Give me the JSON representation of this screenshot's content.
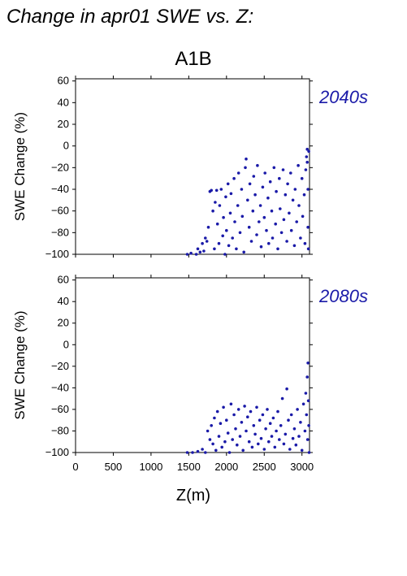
{
  "chart_data": {
    "type": "scatter",
    "title": "Change in apr01 SWE vs. Z:",
    "subtitle": "A1B",
    "xlabel": "Z(m)",
    "ylabel": "SWE Change (%)",
    "xlim": [
      0,
      3100
    ],
    "ylim": [
      -100,
      62
    ],
    "xticks": [
      0,
      500,
      1000,
      1500,
      2000,
      2500,
      3000
    ],
    "yticks": [
      -100,
      -80,
      -60,
      -40,
      -20,
      0,
      20,
      40,
      60
    ],
    "grid": false,
    "point_color": "#1a1aa8",
    "panels": [
      {
        "label": "2040s",
        "points": [
          [
            1480,
            -100
          ],
          [
            1530,
            -99
          ],
          [
            1600,
            -100
          ],
          [
            1620,
            -95
          ],
          [
            1650,
            -98
          ],
          [
            1680,
            -90
          ],
          [
            1700,
            -97
          ],
          [
            1720,
            -85
          ],
          [
            1740,
            -88
          ],
          [
            1760,
            -75
          ],
          [
            1780,
            -42
          ],
          [
            1800,
            -41
          ],
          [
            1820,
            -60
          ],
          [
            1840,
            -95
          ],
          [
            1850,
            -52
          ],
          [
            1870,
            -41
          ],
          [
            1880,
            -72
          ],
          [
            1900,
            -90
          ],
          [
            1910,
            -55
          ],
          [
            1930,
            -40
          ],
          [
            1950,
            -83
          ],
          [
            1960,
            -66
          ],
          [
            1980,
            -100
          ],
          [
            1990,
            -47
          ],
          [
            2000,
            -78
          ],
          [
            2020,
            -35
          ],
          [
            2030,
            -92
          ],
          [
            2050,
            -62
          ],
          [
            2060,
            -44
          ],
          [
            2080,
            -85
          ],
          [
            2100,
            -30
          ],
          [
            2110,
            -70
          ],
          [
            2130,
            -95
          ],
          [
            2150,
            -55
          ],
          [
            2160,
            -25
          ],
          [
            2180,
            -80
          ],
          [
            2200,
            -40
          ],
          [
            2210,
            -65
          ],
          [
            2230,
            -98
          ],
          [
            2250,
            -20
          ],
          [
            2260,
            -12
          ],
          [
            2280,
            -50
          ],
          [
            2300,
            -75
          ],
          [
            2310,
            -35
          ],
          [
            2330,
            -88
          ],
          [
            2350,
            -60
          ],
          [
            2360,
            -28
          ],
          [
            2380,
            -45
          ],
          [
            2400,
            -82
          ],
          [
            2410,
            -18
          ],
          [
            2430,
            -70
          ],
          [
            2450,
            -55
          ],
          [
            2460,
            -93
          ],
          [
            2480,
            -38
          ],
          [
            2500,
            -66
          ],
          [
            2510,
            -25
          ],
          [
            2530,
            -78
          ],
          [
            2550,
            -48
          ],
          [
            2560,
            -90
          ],
          [
            2580,
            -33
          ],
          [
            2600,
            -60
          ],
          [
            2610,
            -85
          ],
          [
            2630,
            -20
          ],
          [
            2650,
            -72
          ],
          [
            2660,
            -42
          ],
          [
            2680,
            -95
          ],
          [
            2700,
            -30
          ],
          [
            2710,
            -58
          ],
          [
            2730,
            -80
          ],
          [
            2750,
            -22
          ],
          [
            2760,
            -68
          ],
          [
            2780,
            -45
          ],
          [
            2800,
            -88
          ],
          [
            2810,
            -35
          ],
          [
            2830,
            -62
          ],
          [
            2850,
            -25
          ],
          [
            2860,
            -78
          ],
          [
            2880,
            -50
          ],
          [
            2900,
            -92
          ],
          [
            2910,
            -40
          ],
          [
            2930,
            -70
          ],
          [
            2950,
            -18
          ],
          [
            2960,
            -55
          ],
          [
            2980,
            -85
          ],
          [
            3000,
            -30
          ],
          [
            3010,
            -65
          ],
          [
            3030,
            -45
          ],
          [
            3040,
            -90
          ],
          [
            3050,
            -22
          ],
          [
            3060,
            -10
          ],
          [
            3070,
            -3
          ],
          [
            3070,
            -15
          ],
          [
            3080,
            -40
          ],
          [
            3080,
            -75
          ],
          [
            3085,
            -95
          ],
          [
            3090,
            -5
          ]
        ]
      },
      {
        "label": "2080s",
        "points": [
          [
            1480,
            -100
          ],
          [
            1550,
            -100
          ],
          [
            1620,
            -99
          ],
          [
            1680,
            -97
          ],
          [
            1720,
            -100
          ],
          [
            1750,
            -80
          ],
          [
            1780,
            -88
          ],
          [
            1800,
            -75
          ],
          [
            1820,
            -92
          ],
          [
            1840,
            -68
          ],
          [
            1860,
            -98
          ],
          [
            1880,
            -62
          ],
          [
            1900,
            -85
          ],
          [
            1920,
            -73
          ],
          [
            1940,
            -95
          ],
          [
            1960,
            -58
          ],
          [
            1980,
            -90
          ],
          [
            2000,
            -70
          ],
          [
            2020,
            -82
          ],
          [
            2040,
            -100
          ],
          [
            2060,
            -55
          ],
          [
            2080,
            -88
          ],
          [
            2100,
            -65
          ],
          [
            2120,
            -78
          ],
          [
            2140,
            -93
          ],
          [
            2160,
            -60
          ],
          [
            2180,
            -85
          ],
          [
            2200,
            -72
          ],
          [
            2220,
            -98
          ],
          [
            2240,
            -57
          ],
          [
            2260,
            -80
          ],
          [
            2280,
            -67
          ],
          [
            2300,
            -90
          ],
          [
            2320,
            -62
          ],
          [
            2340,
            -95
          ],
          [
            2360,
            -75
          ],
          [
            2380,
            -83
          ],
          [
            2400,
            -58
          ],
          [
            2420,
            -92
          ],
          [
            2440,
            -70
          ],
          [
            2460,
            -87
          ],
          [
            2480,
            -65
          ],
          [
            2500,
            -97
          ],
          [
            2520,
            -78
          ],
          [
            2540,
            -60
          ],
          [
            2560,
            -90
          ],
          [
            2580,
            -73
          ],
          [
            2600,
            -85
          ],
          [
            2620,
            -68
          ],
          [
            2640,
            -95
          ],
          [
            2660,
            -80
          ],
          [
            2680,
            -62
          ],
          [
            2700,
            -88
          ],
          [
            2720,
            -75
          ],
          [
            2740,
            -50
          ],
          [
            2760,
            -92
          ],
          [
            2780,
            -83
          ],
          [
            2800,
            -41
          ],
          [
            2820,
            -70
          ],
          [
            2840,
            -97
          ],
          [
            2860,
            -65
          ],
          [
            2880,
            -87
          ],
          [
            2900,
            -78
          ],
          [
            2920,
            -93
          ],
          [
            2940,
            -60
          ],
          [
            2960,
            -85
          ],
          [
            2980,
            -72
          ],
          [
            3000,
            -98
          ],
          [
            3020,
            -55
          ],
          [
            3040,
            -80
          ],
          [
            3050,
            -45
          ],
          [
            3060,
            -65
          ],
          [
            3070,
            -30
          ],
          [
            3075,
            -88
          ],
          [
            3080,
            -17
          ],
          [
            3085,
            -52
          ],
          [
            3090,
            -75
          ],
          [
            3095,
            -100
          ]
        ]
      }
    ]
  }
}
